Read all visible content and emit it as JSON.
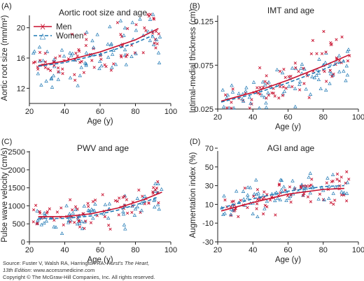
{
  "chart_data": [
    {
      "type": "scatter",
      "panel_label": "(A)",
      "title": "Aortic root size and age",
      "xlabel": "Age (y)",
      "ylabel": "Aortic root size (mm/m²)",
      "xlim": [
        20,
        100
      ],
      "ylim": [
        10,
        22
      ],
      "xticks": [
        "20",
        "40",
        "60",
        "80",
        "100"
      ],
      "yticks": [
        "12",
        "16",
        "20"
      ],
      "ytick_values": [
        12,
        16,
        20
      ],
      "legend": [
        {
          "marker": "X",
          "label": "Men",
          "line": "solid"
        },
        {
          "marker": "△",
          "label": "Women",
          "line": "dashed"
        }
      ],
      "series": [
        {
          "name": "Men",
          "fit": [
            [
              25,
              15.0
            ],
            [
              40,
              15.6
            ],
            [
              60,
              16.8
            ],
            [
              80,
              18.4
            ],
            [
              93,
              19.9
            ]
          ]
        },
        {
          "name": "Women",
          "fit": [
            [
              25,
              14.9
            ],
            [
              40,
              15.4
            ],
            [
              60,
              16.5
            ],
            [
              80,
              18.0
            ],
            [
              90,
              19.0
            ]
          ]
        }
      ],
      "scatter": {
        "x_range": [
          22,
          95
        ],
        "y_spread": 2.2
      }
    },
    {
      "type": "scatter",
      "panel_label": "(B)",
      "title": "IMT and age",
      "xlabel": "Age (y)",
      "ylabel": "Intimal-medial thickness (cm)",
      "xlim": [
        20,
        100
      ],
      "ylim": [
        0.025,
        0.135
      ],
      "xticks": [
        "20",
        "40",
        "60",
        "80",
        "100"
      ],
      "yticks": [
        "0.025",
        "0.075",
        "0.125"
      ],
      "ytick_values": [
        0.025,
        0.075,
        0.125
      ],
      "series": [
        {
          "name": "Men",
          "fit": [
            [
              22,
              0.034
            ],
            [
              40,
              0.044
            ],
            [
              60,
              0.058
            ],
            [
              80,
              0.074
            ],
            [
              95,
              0.087
            ]
          ]
        },
        {
          "name": "Women",
          "fit": [
            [
              22,
              0.033
            ],
            [
              40,
              0.042
            ],
            [
              60,
              0.055
            ],
            [
              80,
              0.07
            ],
            [
              92,
              0.08
            ]
          ]
        }
      ],
      "scatter": {
        "x_range": [
          22,
          95
        ],
        "y_spread": 0.016
      }
    },
    {
      "type": "scatter",
      "panel_label": "(C)",
      "title": "PWV and age",
      "xlabel": "Age (y)",
      "ylabel": "Pulse wave velocity (cm/s)",
      "xlim": [
        20,
        100
      ],
      "ylim": [
        0,
        2600
      ],
      "xticks": [
        "20",
        "40",
        "60",
        "80",
        "100"
      ],
      "yticks": [
        "0",
        "500",
        "1000",
        "1500",
        "2000",
        "2500"
      ],
      "ytick_values": [
        0,
        500,
        1000,
        1500,
        2000,
        2500
      ],
      "series": [
        {
          "name": "Men",
          "fit": [
            [
              25,
              700
            ],
            [
              40,
              700
            ],
            [
              55,
              780
            ],
            [
              70,
              940
            ],
            [
              85,
              1180
            ],
            [
              95,
              1380
            ]
          ]
        },
        {
          "name": "Women",
          "fit": [
            [
              25,
              650
            ],
            [
              40,
              650
            ],
            [
              55,
              720
            ],
            [
              70,
              880
            ],
            [
              85,
              1100
            ],
            [
              93,
              1250
            ]
          ]
        }
      ],
      "scatter": {
        "x_range": [
          22,
          95
        ],
        "y_spread": 260
      }
    },
    {
      "type": "scatter",
      "panel_label": "(D)",
      "title": "AGI and age",
      "xlabel": "Age (y)",
      "ylabel": "Augmentation index (%)",
      "xlim": [
        20,
        100
      ],
      "ylim": [
        -30,
        70
      ],
      "xticks": [
        "20",
        "40",
        "60",
        "80",
        "100"
      ],
      "yticks": [
        "-30",
        "-10",
        "10",
        "30",
        "50",
        "70"
      ],
      "ytick_values": [
        -30,
        -10,
        10,
        30,
        50,
        70
      ],
      "series": [
        {
          "name": "Men",
          "fit": [
            [
              22,
              3
            ],
            [
              40,
              12
            ],
            [
              60,
              21
            ],
            [
              80,
              26
            ],
            [
              92,
              27
            ]
          ]
        },
        {
          "name": "Women",
          "fit": [
            [
              22,
              6
            ],
            [
              40,
              16
            ],
            [
              60,
              24
            ],
            [
              80,
              29
            ],
            [
              92,
              30
            ]
          ]
        }
      ],
      "scatter": {
        "x_range": [
          22,
          95
        ],
        "y_spread": 11
      }
    }
  ],
  "colors": {
    "men": "#c8102e",
    "women": "#1f78b4",
    "axis": "#222222"
  },
  "footer": {
    "line1_prefix": "Source: Fuster V, Walsh RA, Harrington RA: ",
    "line1_italic": "Hurst's The Heart,",
    "line2_italic": "13th Edition",
    "line2_suffix": ": www.accessmedicine.com",
    "line3": "Copyright © The McGraw-Hill Companies, Inc. All rights reserved."
  }
}
